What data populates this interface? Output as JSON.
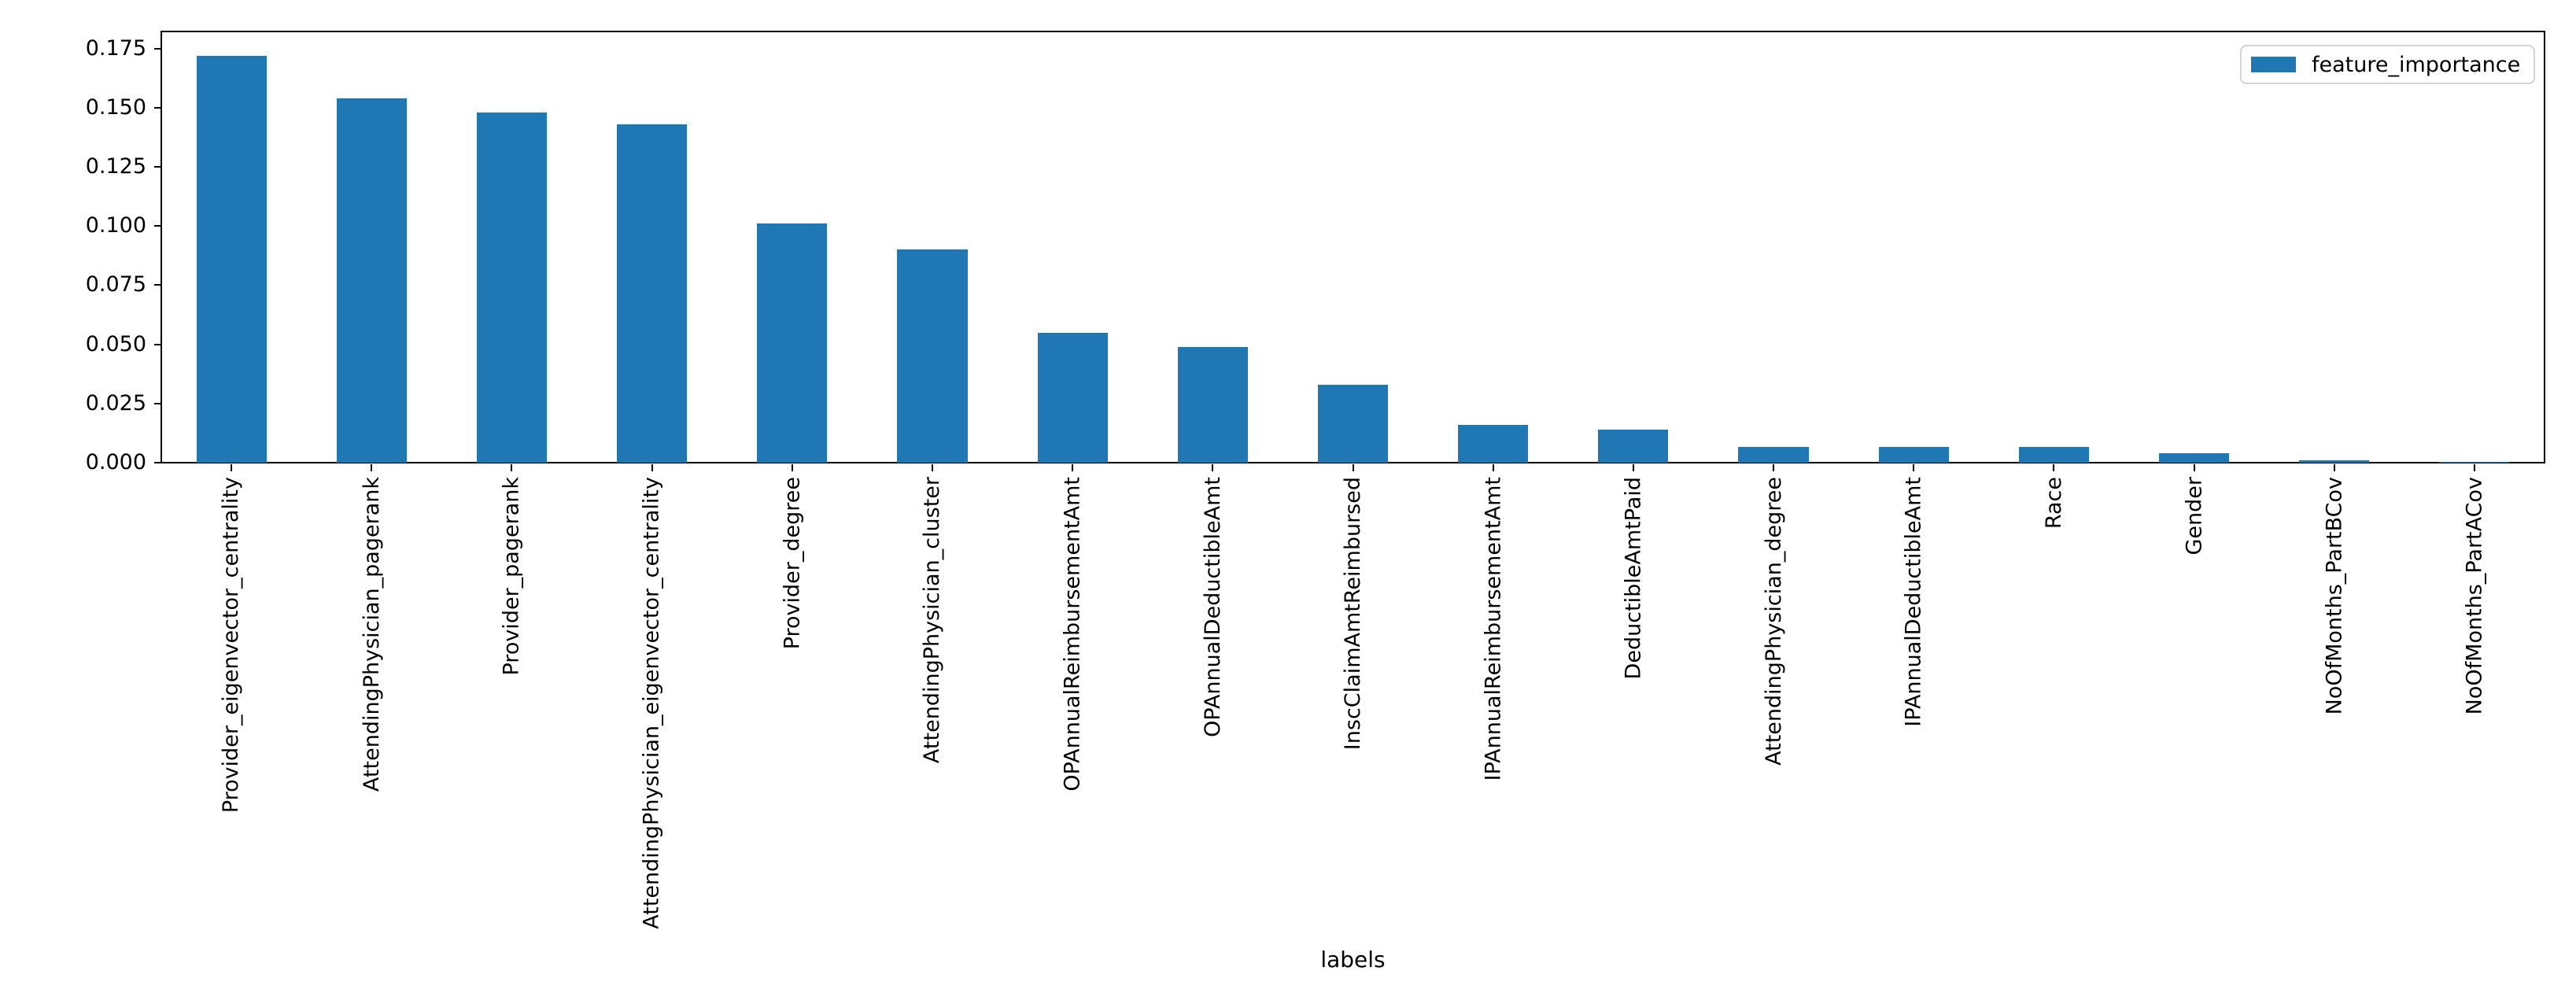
{
  "chart_data": {
    "type": "bar",
    "title": "",
    "xlabel": "labels",
    "ylabel": "",
    "grid": false,
    "legend_position": "upper right",
    "bar_color": "#1f77b4",
    "ylim": [
      0,
      0.1822
    ],
    "y_ticks": [
      "0.000",
      "0.025",
      "0.050",
      "0.075",
      "0.100",
      "0.125",
      "0.150",
      "0.175"
    ],
    "categories": [
      "Provider_eigenvector_centrality",
      "AttendingPhysician_pagerank",
      "Provider_pagerank",
      "AttendingPhysician_eigenvector_centrality",
      "Provider_degree",
      "AttendingPhysician_cluster",
      "OPAnnualReimbursementAmt",
      "OPAnnualDeductibleAmt",
      "InscClaimAmtReimbursed",
      "IPAnnualReimbursementAmt",
      "DeductibleAmtPaid",
      "AttendingPhysician_degree",
      "IPAnnualDeductibleAmt",
      "Race",
      "Gender",
      "NoOfMonths_PartBCov",
      "NoOfMonths_PartACov"
    ],
    "series": [
      {
        "name": "feature_importance",
        "values": [
          0.172,
          0.154,
          0.148,
          0.143,
          0.101,
          0.09,
          0.055,
          0.049,
          0.033,
          0.016,
          0.014,
          0.0065,
          0.0065,
          0.0065,
          0.004,
          0.001,
          0.0004
        ]
      }
    ]
  }
}
